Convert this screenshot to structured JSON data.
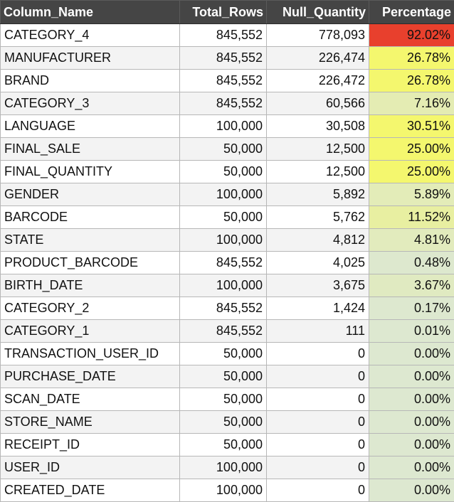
{
  "table": {
    "headers": [
      "Column_Name",
      "Total_Rows",
      "Null_Quantity",
      "Percentage"
    ],
    "rows": [
      {
        "name": "CATEGORY_4",
        "total": "845,552",
        "nulls": "778,093",
        "pct": "92.02%",
        "pct_value": 92.02
      },
      {
        "name": "MANUFACTURER",
        "total": "845,552",
        "nulls": "226,474",
        "pct": "26.78%",
        "pct_value": 26.78
      },
      {
        "name": "BRAND",
        "total": "845,552",
        "nulls": "226,472",
        "pct": "26.78%",
        "pct_value": 26.78
      },
      {
        "name": "CATEGORY_3",
        "total": "845,552",
        "nulls": "60,566",
        "pct": "7.16%",
        "pct_value": 7.16
      },
      {
        "name": "LANGUAGE",
        "total": "100,000",
        "nulls": "30,508",
        "pct": "30.51%",
        "pct_value": 30.51
      },
      {
        "name": "FINAL_SALE",
        "total": "50,000",
        "nulls": "12,500",
        "pct": "25.00%",
        "pct_value": 25.0
      },
      {
        "name": "FINAL_QUANTITY",
        "total": "50,000",
        "nulls": "12,500",
        "pct": "25.00%",
        "pct_value": 25.0
      },
      {
        "name": "GENDER",
        "total": "100,000",
        "nulls": "5,892",
        "pct": "5.89%",
        "pct_value": 5.89
      },
      {
        "name": "BARCODE",
        "total": "50,000",
        "nulls": "5,762",
        "pct": "11.52%",
        "pct_value": 11.52
      },
      {
        "name": "STATE",
        "total": "100,000",
        "nulls": "4,812",
        "pct": "4.81%",
        "pct_value": 4.81
      },
      {
        "name": "PRODUCT_BARCODE",
        "total": "845,552",
        "nulls": "4,025",
        "pct": "0.48%",
        "pct_value": 0.48
      },
      {
        "name": "BIRTH_DATE",
        "total": "100,000",
        "nulls": "3,675",
        "pct": "3.67%",
        "pct_value": 3.67
      },
      {
        "name": "CATEGORY_2",
        "total": "845,552",
        "nulls": "1,424",
        "pct": "0.17%",
        "pct_value": 0.17
      },
      {
        "name": "CATEGORY_1",
        "total": "845,552",
        "nulls": "111",
        "pct": "0.01%",
        "pct_value": 0.01
      },
      {
        "name": "TRANSACTION_USER_ID",
        "total": "50,000",
        "nulls": "0",
        "pct": "0.00%",
        "pct_value": 0.0
      },
      {
        "name": "PURCHASE_DATE",
        "total": "50,000",
        "nulls": "0",
        "pct": "0.00%",
        "pct_value": 0.0
      },
      {
        "name": "SCAN_DATE",
        "total": "50,000",
        "nulls": "0",
        "pct": "0.00%",
        "pct_value": 0.0
      },
      {
        "name": "STORE_NAME",
        "total": "50,000",
        "nulls": "0",
        "pct": "0.00%",
        "pct_value": 0.0
      },
      {
        "name": "RECEIPT_ID",
        "total": "50,000",
        "nulls": "0",
        "pct": "0.00%",
        "pct_value": 0.0
      },
      {
        "name": "USER_ID",
        "total": "100,000",
        "nulls": "0",
        "pct": "0.00%",
        "pct_value": 0.0
      },
      {
        "name": "CREATED_DATE",
        "total": "100,000",
        "nulls": "0",
        "pct": "0.00%",
        "pct_value": 0.0
      }
    ]
  },
  "colors": {
    "header_bg": "#454545",
    "header_text": "#ffffff",
    "scale_low": "#dde8d0",
    "scale_mid": "#f4f76e",
    "scale_high": "#e8402d"
  }
}
